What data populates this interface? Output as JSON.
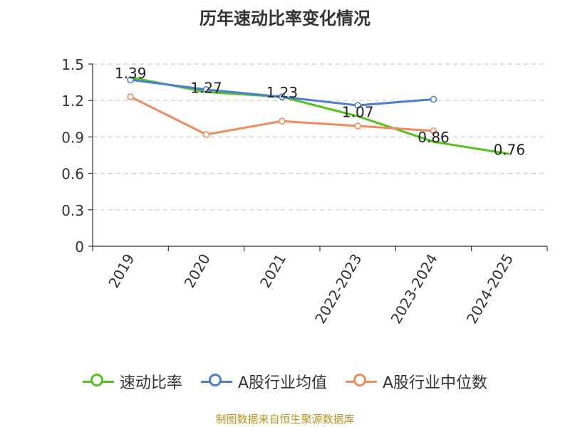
{
  "chart_data": {
    "type": "line",
    "title": "历年速动比率变化情况",
    "categories": [
      "2019",
      "2020",
      "2021",
      "2022-2023",
      "2023-2024",
      "2024-2025"
    ],
    "ylim": [
      0,
      1.5
    ],
    "yticks": [
      0,
      0.3,
      0.6,
      0.9,
      1.2,
      1.5
    ],
    "ytick_labels": [
      "0",
      "0.3",
      "0.6",
      "0.9",
      "1.2",
      "1.5"
    ],
    "grid": true,
    "legend_position": "bottom",
    "series": [
      {
        "name": "速动比率",
        "color": "#52c41a",
        "values": [
          1.39,
          1.27,
          1.23,
          1.07,
          0.86,
          0.76
        ],
        "labels": [
          "1.39",
          "1.27",
          "1.23",
          "1.07",
          "0.86",
          "0.76"
        ]
      },
      {
        "name": "A股行业均值",
        "color": "#4a7fd6",
        "values": [
          1.37,
          1.29,
          1.23,
          1.16,
          1.21,
          null
        ]
      },
      {
        "name": "A股行业中位数",
        "color": "#f28a5a",
        "values": [
          1.23,
          0.92,
          1.03,
          0.99,
          0.95,
          null
        ]
      }
    ]
  },
  "source": "制图数据来自恒生聚源数据库"
}
